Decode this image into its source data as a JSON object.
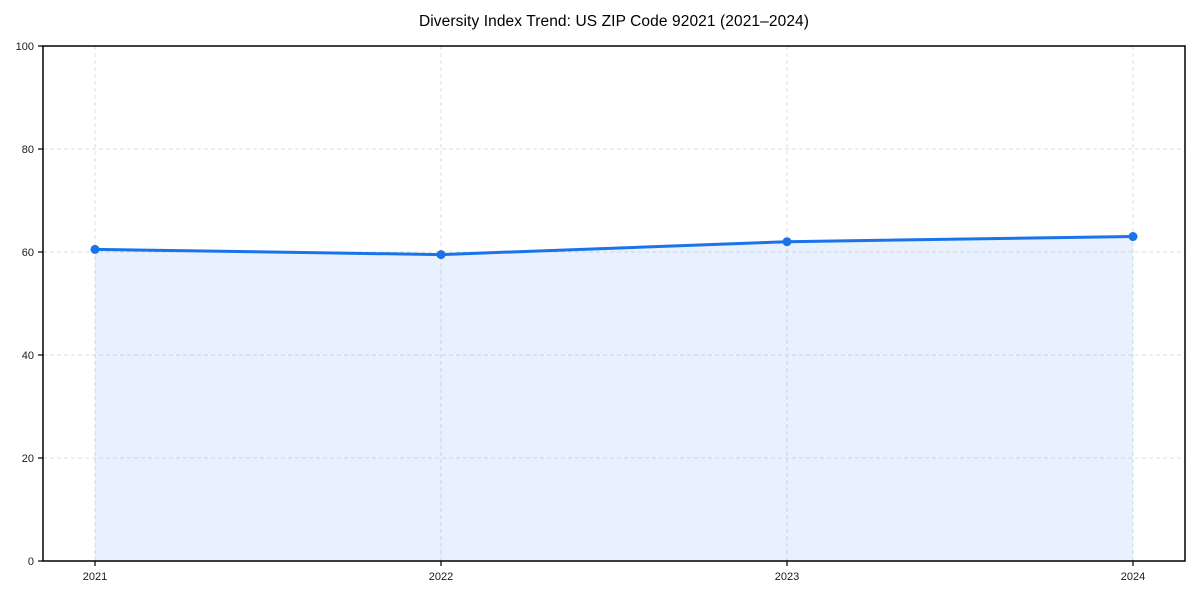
{
  "chart_data": {
    "type": "area",
    "title": "Diversity Index Trend: US ZIP Code 92021 (2021–2024)",
    "categories": [
      "2021",
      "2022",
      "2023",
      "2024"
    ],
    "series": [
      {
        "name": "Diversity Index",
        "values": [
          60.5,
          59.5,
          62,
          63
        ]
      }
    ],
    "xlabel": "",
    "ylabel": "",
    "ylim": [
      0,
      100
    ],
    "yticks": [
      0,
      20,
      40,
      60,
      80,
      100
    ],
    "ytick_labels": [
      "0",
      "20",
      "40",
      "60",
      "80",
      "100"
    ],
    "grid": "dashed, both axes",
    "legend": "none",
    "colors": {
      "line": "#1a73e8",
      "marker": "#1a73e8",
      "fill": "rgba(26,115,232,0.10)",
      "grid": "#dedede",
      "spine": "#000000",
      "tick_label": "#1a1a1a",
      "background": "#ffffff"
    }
  }
}
